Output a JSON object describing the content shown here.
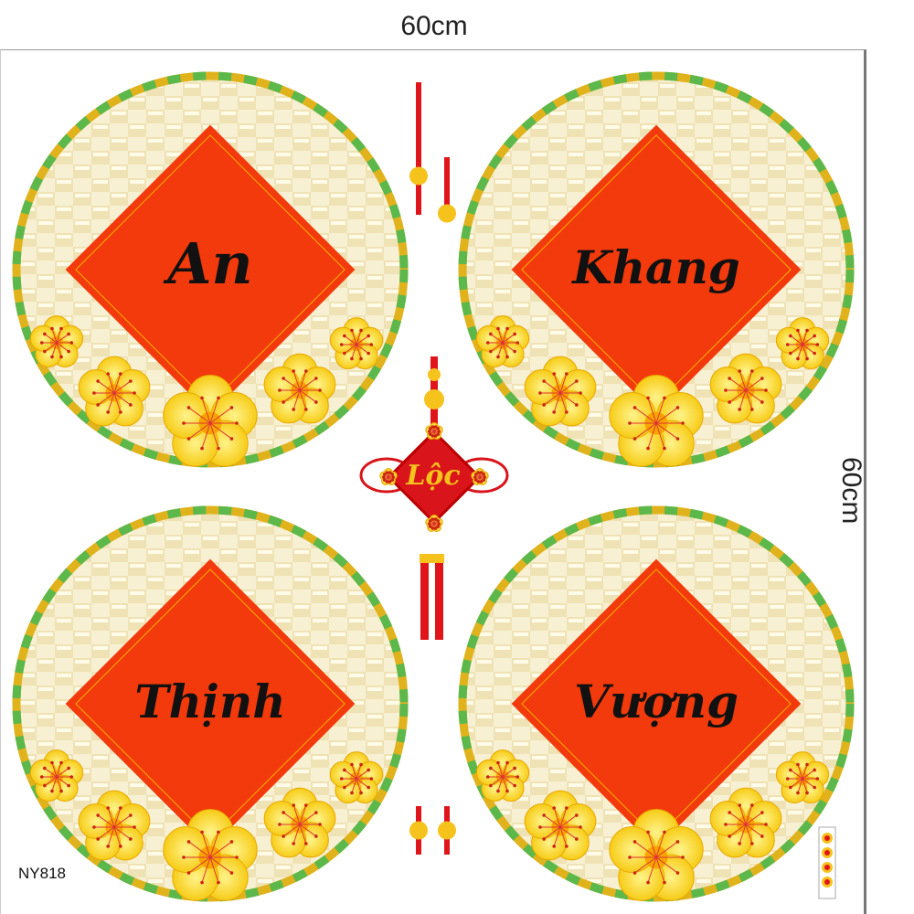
{
  "dimensions": {
    "width": "60cm",
    "height": "60cm"
  },
  "product_code": "NY818",
  "panels": [
    {
      "word": "An"
    },
    {
      "word": "Khang"
    },
    {
      "word": "Thịnh"
    },
    {
      "word": "Vượng"
    }
  ],
  "knot": {
    "word": "Lộc"
  },
  "colors": {
    "diamond": "#f23a0c",
    "rim_green": "#5cb84a",
    "rim_gold": "#e0b21c",
    "weave": "#f4ecc8",
    "knot_red": "#d9141b",
    "flower": "#fbd40a",
    "text": "#111111"
  }
}
